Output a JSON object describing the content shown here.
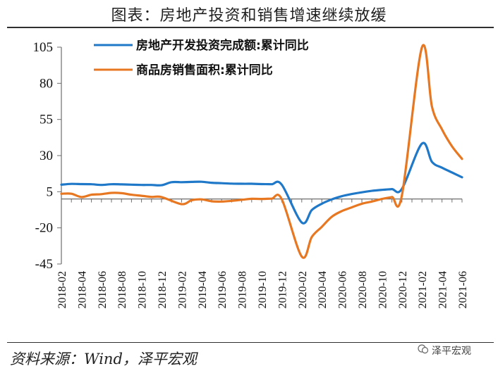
{
  "title": "图表：房地产投资和销售增速继续放缓",
  "source": "资料来源：Wind，泽平宏观",
  "watermark": "泽平宏观",
  "chart_data": {
    "type": "line",
    "title": "图表：房地产投资和销售增速继续放缓",
    "xlabel": "",
    "ylabel": "",
    "ylim": [
      -45,
      105
    ],
    "yticks": [
      -45,
      -20,
      5,
      30,
      55,
      80,
      105
    ],
    "x": [
      "2018-02",
      "2018-03",
      "2018-04",
      "2018-05",
      "2018-06",
      "2018-07",
      "2018-08",
      "2018-09",
      "2018-10",
      "2018-11",
      "2018-12",
      "2019-01",
      "2019-02",
      "2019-03",
      "2019-04",
      "2019-05",
      "2019-06",
      "2019-07",
      "2019-08",
      "2019-09",
      "2019-10",
      "2019-11",
      "2019-12",
      "2020-01",
      "2020-02",
      "2020-03",
      "2020-04",
      "2020-05",
      "2020-06",
      "2020-07",
      "2020-08",
      "2020-09",
      "2020-10",
      "2020-11",
      "2020-12",
      "2021-01",
      "2021-02",
      "2021-03",
      "2021-04",
      "2021-05",
      "2021-06"
    ],
    "xtick_labels": [
      "2018-02",
      "2018-04",
      "2018-06",
      "2018-08",
      "2018-10",
      "2018-12",
      "2019-02",
      "2019-04",
      "2019-06",
      "2019-08",
      "2019-10",
      "2019-12",
      "2020-02",
      "2020-04",
      "2020-06",
      "2020-08",
      "2020-10",
      "2020-12",
      "2021-02",
      "2021-04",
      "2021-06"
    ],
    "series": [
      {
        "name": "房地产开发投资完成额:累计同比",
        "color": "#1f78c8",
        "values": [
          9.9,
          10.4,
          10.3,
          10.2,
          9.7,
          10.2,
          10.1,
          9.9,
          9.7,
          9.7,
          9.5,
          11.6,
          11.6,
          11.8,
          11.9,
          11.2,
          10.9,
          10.6,
          10.5,
          10.5,
          10.3,
          10.2,
          9.9,
          null,
          -16.3,
          -7.7,
          -3.3,
          -0.3,
          1.9,
          3.4,
          4.6,
          5.6,
          6.3,
          6.8,
          7.0,
          null,
          38.3,
          25.6,
          21.6,
          18.3,
          15.0
        ]
      },
      {
        "name": "商品房销售面积:累计同比",
        "color": "#e87722",
        "values": [
          3.6,
          3.6,
          1.3,
          2.9,
          3.3,
          4.2,
          4.0,
          2.9,
          2.2,
          1.4,
          1.3,
          null,
          -3.6,
          -0.9,
          -0.3,
          -1.6,
          -1.8,
          -1.3,
          -0.6,
          0.1,
          0.0,
          0.2,
          -0.1,
          null,
          -39.9,
          -26.3,
          -19.3,
          -12.3,
          -8.4,
          -5.8,
          -3.3,
          -1.8,
          0.0,
          1.3,
          2.6,
          null,
          104.9,
          63.8,
          48.1,
          36.4,
          27.7
        ]
      }
    ],
    "legend_position": "top-left",
    "grid": false
  }
}
